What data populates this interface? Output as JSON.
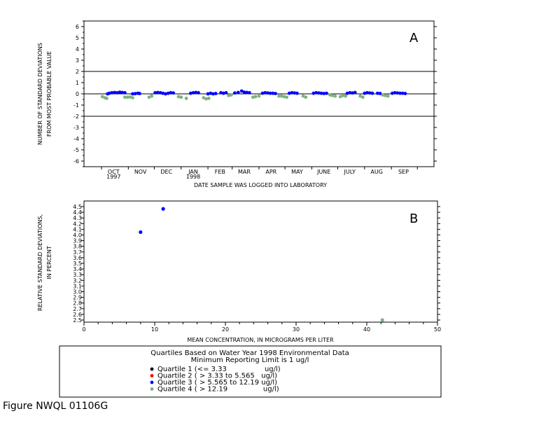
{
  "figure_id": "Figure NWQL 01106G",
  "colors": {
    "quartile_1": "#000000",
    "quartile_2": "#ff0000",
    "quartile_3": "#0000ff",
    "quartile_4": "#7fb27f",
    "axis": "#000000"
  },
  "legend": {
    "title_line1": "Quartiles Based on Water Year 1998 Environmental Data",
    "title_line2": "Minimum Reporting Limit is 1 ug/l",
    "entries": [
      {
        "label": "Quartile 1 (<= 3.33                 ug/l)",
        "color_key": "quartile_1"
      },
      {
        "label": "Quartile 2 ( > 3.33 to 5.565   ug/l)",
        "color_key": "quartile_2"
      },
      {
        "label": "Quartile 3 ( > 5.565 to 12.19 ug/l)",
        "color_key": "quartile_3"
      },
      {
        "label": "Quartile 4 ( > 12.19                ug/l)",
        "color_key": "quartile_4"
      }
    ]
  },
  "chart_data": [
    {
      "type": "scatter",
      "panel_label": "A",
      "xlabel": "DATE SAMPLE WAS LOGGED INTO LABORATORY",
      "ylabel_line1": "NUMBER OF STANDARD DEVIATIONS",
      "ylabel_line2": "FROM MOST PROBABLE VALUE",
      "ylim": [
        -6.5,
        6.5
      ],
      "yticks": [
        6,
        5,
        4,
        3,
        2,
        1,
        0,
        -1,
        -2,
        -3,
        -4,
        -5,
        -6
      ],
      "xlim": [
        "1997-10-01",
        "1998-09-30"
      ],
      "x_tick_labels": [
        {
          "label": "OCT",
          "sub": "1997",
          "date": "1997-10-15"
        },
        {
          "label": "NOV",
          "sub": "",
          "date": "1997-11-15"
        },
        {
          "label": "DEC",
          "sub": "",
          "date": "1997-12-15"
        },
        {
          "label": "JAN",
          "sub": "1998",
          "date": "1998-01-15"
        },
        {
          "label": "FEB",
          "sub": "",
          "date": "1998-02-15"
        },
        {
          "label": "MAR",
          "sub": "",
          "date": "1998-03-15"
        },
        {
          "label": "APR",
          "sub": "",
          "date": "1998-04-15"
        },
        {
          "label": "MAY",
          "sub": "",
          "date": "1998-05-15"
        },
        {
          "label": "JUNE",
          "sub": "",
          "date": "1998-06-15"
        },
        {
          "label": "JULY",
          "sub": "",
          "date": "1998-07-15"
        },
        {
          "label": "AUG",
          "sub": "",
          "date": "1998-08-15"
        },
        {
          "label": "SEP",
          "sub": "",
          "date": "1998-09-15"
        }
      ],
      "reference_lines": [
        2,
        0,
        -2
      ],
      "series": [
        {
          "color_key": "quartile_3",
          "points": [
            [
              "1997-10-08",
              0.0
            ],
            [
              "1997-10-10",
              0.05
            ],
            [
              "1997-10-13",
              0.1
            ],
            [
              "1997-10-16",
              0.12
            ],
            [
              "1997-10-19",
              0.1
            ],
            [
              "1997-10-22",
              0.15
            ],
            [
              "1997-10-25",
              0.12
            ],
            [
              "1997-10-28",
              0.1
            ],
            [
              "1997-11-06",
              0.0
            ],
            [
              "1997-11-09",
              0.02
            ],
            [
              "1997-11-12",
              0.05
            ],
            [
              "1997-11-14",
              0.03
            ],
            [
              "1997-12-02",
              0.1
            ],
            [
              "1997-12-05",
              0.12
            ],
            [
              "1997-12-08",
              0.1
            ],
            [
              "1997-12-11",
              0.05
            ],
            [
              "1997-12-14",
              0.0
            ],
            [
              "1997-12-17",
              0.05
            ],
            [
              "1997-12-20",
              0.1
            ],
            [
              "1997-12-23",
              0.08
            ],
            [
              "1998-01-12",
              0.05
            ],
            [
              "1998-01-15",
              0.1
            ],
            [
              "1998-01-18",
              0.12
            ],
            [
              "1998-01-21",
              0.1
            ],
            [
              "1998-02-01",
              0.0
            ],
            [
              "1998-02-04",
              0.05
            ],
            [
              "1998-02-07",
              0.0
            ],
            [
              "1998-02-10",
              0.03
            ],
            [
              "1998-02-16",
              0.1
            ],
            [
              "1998-02-19",
              0.05
            ],
            [
              "1998-02-22",
              0.1
            ],
            [
              "1998-03-04",
              0.08
            ],
            [
              "1998-03-08",
              0.12
            ],
            [
              "1998-03-12",
              0.25
            ],
            [
              "1998-03-15",
              0.15
            ],
            [
              "1998-03-18",
              0.12
            ],
            [
              "1998-03-21",
              0.1
            ],
            [
              "1998-04-05",
              0.05
            ],
            [
              "1998-04-08",
              0.1
            ],
            [
              "1998-04-11",
              0.08
            ],
            [
              "1998-04-14",
              0.05
            ],
            [
              "1998-04-17",
              0.05
            ],
            [
              "1998-04-20",
              0.03
            ],
            [
              "1998-05-06",
              0.05
            ],
            [
              "1998-05-09",
              0.1
            ],
            [
              "1998-05-12",
              0.08
            ],
            [
              "1998-05-15",
              0.05
            ],
            [
              "1998-06-03",
              0.05
            ],
            [
              "1998-06-06",
              0.1
            ],
            [
              "1998-06-09",
              0.08
            ],
            [
              "1998-06-12",
              0.05
            ],
            [
              "1998-06-15",
              0.03
            ],
            [
              "1998-06-18",
              0.05
            ],
            [
              "1998-07-12",
              0.05
            ],
            [
              "1998-07-15",
              0.1
            ],
            [
              "1998-07-18",
              0.08
            ],
            [
              "1998-07-21",
              0.12
            ],
            [
              "1998-08-01",
              0.05
            ],
            [
              "1998-08-04",
              0.1
            ],
            [
              "1998-08-07",
              0.08
            ],
            [
              "1998-08-10",
              0.05
            ],
            [
              "1998-08-16",
              0.05
            ],
            [
              "1998-08-19",
              0.03
            ],
            [
              "1998-09-02",
              0.05
            ],
            [
              "1998-09-05",
              0.1
            ],
            [
              "1998-09-08",
              0.08
            ],
            [
              "1998-09-11",
              0.05
            ],
            [
              "1998-09-14",
              0.05
            ],
            [
              "1998-09-17",
              0.03
            ]
          ]
        },
        {
          "color_key": "quartile_4",
          "points": [
            [
              "1997-10-02",
              -0.25
            ],
            [
              "1997-10-05",
              -0.35
            ],
            [
              "1997-10-07",
              -0.4
            ],
            [
              "1997-10-28",
              -0.3
            ],
            [
              "1997-10-31",
              -0.3
            ],
            [
              "1997-11-03",
              -0.28
            ],
            [
              "1997-11-06",
              -0.35
            ],
            [
              "1997-11-25",
              -0.3
            ],
            [
              "1997-11-28",
              -0.2
            ],
            [
              "1997-12-29",
              -0.25
            ],
            [
              "1998-01-01",
              -0.3
            ],
            [
              "1998-01-07",
              -0.4
            ],
            [
              "1998-01-27",
              -0.35
            ],
            [
              "1998-01-30",
              -0.45
            ],
            [
              "1998-02-02",
              -0.4
            ],
            [
              "1998-02-25",
              -0.15
            ],
            [
              "1998-02-28",
              -0.1
            ],
            [
              "1998-03-25",
              -0.3
            ],
            [
              "1998-03-28",
              -0.25
            ],
            [
              "1998-04-01",
              -0.2
            ],
            [
              "1998-04-24",
              -0.2
            ],
            [
              "1998-04-27",
              -0.2
            ],
            [
              "1998-04-30",
              -0.25
            ],
            [
              "1998-05-03",
              -0.3
            ],
            [
              "1998-05-22",
              -0.2
            ],
            [
              "1998-05-25",
              -0.3
            ],
            [
              "1998-06-22",
              -0.1
            ],
            [
              "1998-06-25",
              -0.15
            ],
            [
              "1998-06-28",
              -0.2
            ],
            [
              "1998-07-04",
              -0.25
            ],
            [
              "1998-07-07",
              -0.15
            ],
            [
              "1998-07-10",
              -0.2
            ],
            [
              "1998-07-27",
              -0.2
            ],
            [
              "1998-07-30",
              -0.3
            ],
            [
              "1998-08-22",
              -0.1
            ],
            [
              "1998-08-25",
              -0.15
            ],
            [
              "1998-08-28",
              -0.2
            ]
          ]
        }
      ]
    },
    {
      "type": "scatter",
      "panel_label": "B",
      "xlabel": "MEAN CONCENTRATION, IN MICROGRAMS PER LITER",
      "ylabel_line1": "RELATIVE STANDARD DEVIATIONS,",
      "ylabel_line2": "IN PERCENT",
      "xlim": [
        0,
        50
      ],
      "xticks": [
        0,
        10,
        20,
        30,
        40,
        50
      ],
      "ylim": [
        2.5,
        4.5
      ],
      "yticks": [
        4.5,
        4.4,
        4.3,
        4.2,
        4.1,
        4.0,
        3.9,
        3.8,
        3.7,
        3.6,
        3.5,
        3.4,
        3.3,
        3.2,
        3.1,
        3.0,
        2.9,
        2.8,
        2.7,
        2.6,
        2.5
      ],
      "ytick_labels": [
        "4.5",
        "4.4",
        "4.3",
        "4.2",
        "4.1",
        "4.0",
        "3.9",
        "3.8",
        "3.7",
        "3.6",
        "3.5",
        "3.4",
        "3.3",
        "3.2",
        "3.1",
        "3.0",
        "2.9",
        "2.8",
        "2.7",
        "2.6",
        "2.5"
      ],
      "series": [
        {
          "color_key": "quartile_3",
          "points": [
            [
              8.0,
              4.05
            ],
            [
              11.2,
              4.46
            ]
          ]
        },
        {
          "color_key": "quartile_4",
          "points": [
            [
              42.2,
              2.5
            ]
          ]
        }
      ]
    }
  ]
}
